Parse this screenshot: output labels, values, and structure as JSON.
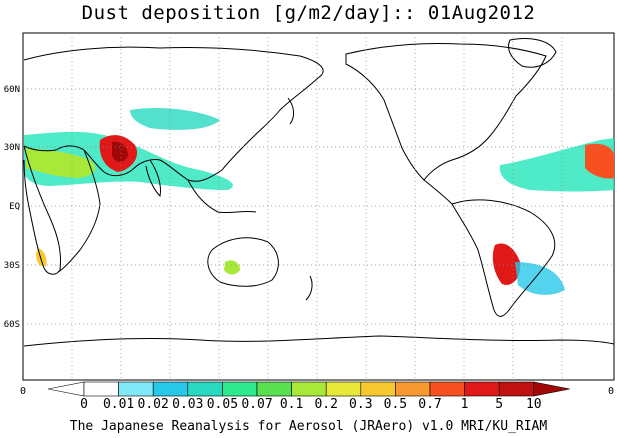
{
  "title": "Dust deposition [g/m2/day]:: 01Aug2012",
  "footer": "The Japanese Reanalysis for Aerosol (JRAero) v1.0 MRI/KU_RIAM",
  "latitude_labels": [
    "60N",
    "30N",
    "EQ",
    "30S",
    "60S"
  ],
  "longitude_edge_labels": {
    "left": "0",
    "right": "0"
  },
  "colorbar": {
    "labels": [
      "0",
      "0.01",
      "0.02",
      "0.03",
      "0.05",
      "0.07",
      "0.1",
      "0.2",
      "0.3",
      "0.5",
      "0.7",
      "1",
      "5",
      "10"
    ],
    "colors": [
      "#ffffff",
      "#ffffff",
      "#80e8f8",
      "#28c8e8",
      "#28d8c0",
      "#30e890",
      "#58e050",
      "#a8e838",
      "#e8e838",
      "#f8c830",
      "#f89830",
      "#f85020",
      "#e01818",
      "#c01010",
      "#a00808"
    ]
  },
  "map": {
    "grid": "dotted",
    "land_color": "#ffffff",
    "coast_color": "#000000"
  }
}
